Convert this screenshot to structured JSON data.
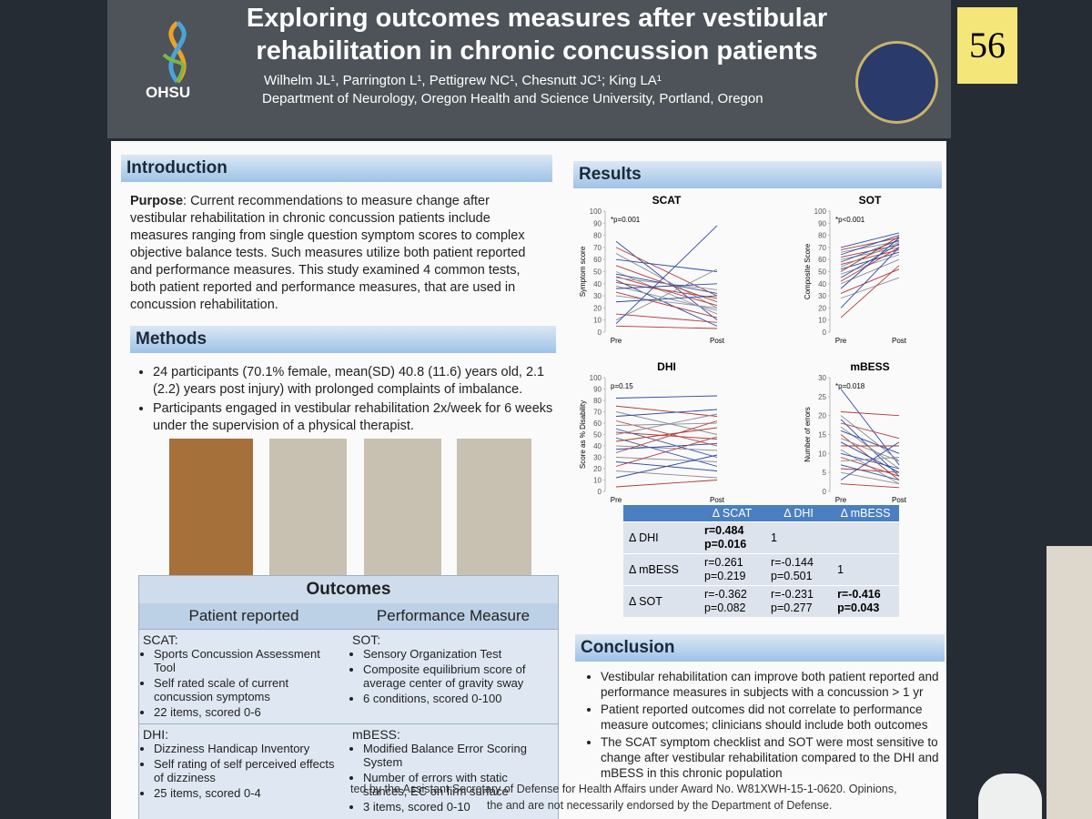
{
  "header": {
    "logo": "OHSU",
    "title": "Exploring outcomes measures after vestibular rehabilitation in chronic concussion patients",
    "authors": "Wilhelm JL¹, Parrington L¹, Pettigrew NC¹, Chesnutt JC¹; King LA¹",
    "affiliation": "Department of Neurology, Oregon Health and Science University, Portland, Oregon",
    "sticky_note": "56"
  },
  "introduction": {
    "heading": "Introduction",
    "purpose_label": "Purpose",
    "text": ": Current recommendations to measure change after vestibular rehabilitation in chronic concussion patients include measures ranging from single question symptom scores to complex objective balance tests.  Such measures utilize both patient reported and performance measures. This study examined 4 common tests, both patient reported and performance measures, that are used in concussion rehabilitation."
  },
  "methods": {
    "heading": "Methods",
    "bullets": [
      "24 participants (70.1% female, mean(SD) 40.8 (11.6) years old, 2.1 (2.2) years post injury) with prolonged complaints of imbalance.",
      "Participants engaged in vestibular rehabilitation 2x/week for 6 weeks under the supervision of a physical therapist."
    ]
  },
  "outcomes": {
    "title": "Outcomes",
    "columns": [
      "Patient reported",
      "Performance Measure"
    ],
    "rows": [
      [
        {
          "head": "SCAT:",
          "items": [
            "Sports Concussion Assessment Tool",
            "Self rated scale of current concussion symptoms",
            "22 items, scored 0-6"
          ]
        },
        {
          "head": "SOT:",
          "items": [
            "Sensory Organization Test",
            "Composite equilibrium score of average center of gravity sway",
            "6 conditions, scored 0-100"
          ]
        }
      ],
      [
        {
          "head": "DHI:",
          "items": [
            "Dizziness Handicap Inventory",
            "Self rating of self perceived effects of dizziness",
            "25 items, scored 0-4"
          ]
        },
        {
          "head": "mBESS:",
          "items": [
            "Modified Balance Error Scoring System",
            "Number of errors with static stances, EC on firm surface",
            "3 items, scored 0-10"
          ]
        }
      ]
    ]
  },
  "results": {
    "heading": "Results"
  },
  "chart_data": [
    {
      "type": "line",
      "title": "SCAT",
      "y_label": "Symptom score",
      "annotation": "*p=0.001",
      "categories": [
        "Pre",
        "Post"
      ],
      "ylim": [
        0,
        100
      ],
      "yticks": [
        0,
        10,
        20,
        30,
        40,
        50,
        60,
        70,
        80,
        90,
        100
      ],
      "colors": [
        "#2e4a9e",
        "#b03a3a",
        "#8a8f99"
      ],
      "series": [
        {
          "values": [
            75,
            10
          ]
        },
        {
          "values": [
            70,
            30
          ]
        },
        {
          "values": [
            65,
            20
          ]
        },
        {
          "values": [
            60,
            50
          ]
        },
        {
          "values": [
            55,
            25
          ]
        },
        {
          "values": [
            50,
            15
          ]
        },
        {
          "values": [
            48,
            32
          ]
        },
        {
          "values": [
            46,
            22
          ]
        },
        {
          "values": [
            45,
            35
          ]
        },
        {
          "values": [
            43,
            5
          ]
        },
        {
          "values": [
            41,
            28
          ]
        },
        {
          "values": [
            38,
            18
          ]
        },
        {
          "values": [
            36,
            40
          ]
        },
        {
          "values": [
            33,
            12
          ]
        },
        {
          "values": [
            30,
            20
          ]
        },
        {
          "values": [
            25,
            30
          ]
        },
        {
          "values": [
            15,
            8
          ]
        },
        {
          "values": [
            10,
            52
          ]
        },
        {
          "values": [
            7,
            88
          ]
        },
        {
          "values": [
            5,
            3
          ]
        }
      ]
    },
    {
      "type": "line",
      "title": "SOT",
      "y_label": "Composite Score",
      "annotation": "*p<0.001",
      "categories": [
        "Pre",
        "Post"
      ],
      "ylim": [
        0,
        100
      ],
      "yticks": [
        0,
        10,
        20,
        30,
        40,
        50,
        60,
        70,
        80,
        90,
        100
      ],
      "colors": [
        "#2e4a9e",
        "#b03a3a",
        "#8a8f99"
      ],
      "series": [
        {
          "values": [
            70,
            82
          ]
        },
        {
          "values": [
            68,
            78
          ]
        },
        {
          "values": [
            66,
            75
          ]
        },
        {
          "values": [
            64,
            80
          ]
        },
        {
          "values": [
            62,
            72
          ]
        },
        {
          "values": [
            60,
            70
          ]
        },
        {
          "values": [
            58,
            76
          ]
        },
        {
          "values": [
            56,
            68
          ]
        },
        {
          "values": [
            54,
            74
          ]
        },
        {
          "values": [
            52,
            66
          ]
        },
        {
          "values": [
            50,
            79
          ]
        },
        {
          "values": [
            48,
            64
          ]
        },
        {
          "values": [
            45,
            73
          ]
        },
        {
          "values": [
            42,
            70
          ]
        },
        {
          "values": [
            40,
            60
          ]
        },
        {
          "values": [
            36,
            78
          ]
        },
        {
          "values": [
            32,
            52
          ]
        },
        {
          "values": [
            28,
            45
          ]
        },
        {
          "values": [
            20,
            70
          ]
        },
        {
          "values": [
            12,
            55
          ]
        }
      ]
    },
    {
      "type": "line",
      "title": "DHI",
      "y_label": "Score as % Disability",
      "annotation": "p=0.15",
      "categories": [
        "Pre",
        "Post"
      ],
      "ylim": [
        0,
        100
      ],
      "yticks": [
        0,
        10,
        20,
        30,
        40,
        50,
        60,
        70,
        80,
        90,
        100
      ],
      "colors": [
        "#2e4a9e",
        "#b03a3a",
        "#8a8f99"
      ],
      "series": [
        {
          "values": [
            82,
            84
          ]
        },
        {
          "values": [
            75,
            66
          ]
        },
        {
          "values": [
            70,
            50
          ]
        },
        {
          "values": [
            66,
            72
          ]
        },
        {
          "values": [
            62,
            40
          ]
        },
        {
          "values": [
            58,
            60
          ]
        },
        {
          "values": [
            55,
            30
          ]
        },
        {
          "values": [
            52,
            46
          ]
        },
        {
          "values": [
            50,
            68
          ]
        },
        {
          "values": [
            47,
            22
          ]
        },
        {
          "values": [
            44,
            56
          ]
        },
        {
          "values": [
            40,
            36
          ]
        },
        {
          "values": [
            37,
            42
          ]
        },
        {
          "values": [
            34,
            62
          ]
        },
        {
          "values": [
            30,
            26
          ]
        },
        {
          "values": [
            26,
            18
          ]
        },
        {
          "values": [
            22,
            48
          ]
        },
        {
          "values": [
            18,
            12
          ]
        },
        {
          "values": [
            12,
            32
          ]
        },
        {
          "values": [
            4,
            10
          ]
        }
      ]
    },
    {
      "type": "line",
      "title": "mBESS",
      "y_label": "Number of errors",
      "annotation": "*p=0.018",
      "categories": [
        "Pre",
        "Post"
      ],
      "ylim": [
        0,
        30
      ],
      "yticks": [
        0,
        5,
        10,
        15,
        20,
        25,
        30
      ],
      "colors": [
        "#2e4a9e",
        "#b03a3a",
        "#8a8f99"
      ],
      "series": [
        {
          "values": [
            27,
            7
          ]
        },
        {
          "values": [
            21,
            20
          ]
        },
        {
          "values": [
            20,
            8
          ]
        },
        {
          "values": [
            19,
            4
          ]
        },
        {
          "values": [
            18,
            14
          ]
        },
        {
          "values": [
            17,
            6
          ]
        },
        {
          "values": [
            16,
            10
          ]
        },
        {
          "values": [
            15,
            3
          ]
        },
        {
          "values": [
            14,
            8
          ]
        },
        {
          "values": [
            13,
            5
          ]
        },
        {
          "values": [
            12,
            12
          ]
        },
        {
          "values": [
            11,
            2
          ]
        },
        {
          "values": [
            10,
            6
          ]
        },
        {
          "values": [
            9,
            4
          ]
        },
        {
          "values": [
            8,
            9
          ]
        },
        {
          "values": [
            7,
            3
          ]
        },
        {
          "values": [
            6,
            5
          ]
        },
        {
          "values": [
            5,
            2
          ]
        },
        {
          "values": [
            3,
            13
          ]
        },
        {
          "values": [
            2,
            1
          ]
        }
      ]
    }
  ],
  "correlation_table": {
    "columns": [
      "Δ SCAT",
      "Δ DHI",
      "Δ mBESS"
    ],
    "rows": [
      {
        "label": "Δ DHI",
        "cells": [
          {
            "lines": [
              "r=0.484",
              "p=0.016"
            ],
            "bold": true
          },
          {
            "lines": [
              "1"
            ]
          },
          null
        ]
      },
      {
        "label": "Δ mBESS",
        "cells": [
          {
            "lines": [
              "r=0.261",
              "p=0.219"
            ]
          },
          {
            "lines": [
              "r=-0.144",
              "p=0.501"
            ]
          },
          {
            "lines": [
              "1"
            ]
          }
        ]
      },
      {
        "label": "Δ SOT",
        "cells": [
          {
            "lines": [
              "r=-0.362",
              "p=0.082"
            ]
          },
          {
            "lines": [
              "r=-0.231",
              "p=0.277"
            ]
          },
          {
            "lines": [
              "r=-0.416",
              "p=0.043"
            ],
            "bold": true
          }
        ]
      }
    ]
  },
  "conclusion": {
    "heading": "Conclusion",
    "bullets": [
      "Vestibular rehabilitation can improve both patient reported and performance measures in subjects with a concussion > 1 yr",
      "Patient reported outcomes did not correlate to performance measure outcomes; clinicians should include both outcomes",
      "The SCAT symptom checklist and SOT were most sensitive to change after vestibular rehabilitation compared to the DHI and mBESS in this chronic population"
    ]
  },
  "footer": {
    "line1": "ted by the Assistant Secretary of Defense for Health Affairs under Award No. W81XWH-15-1-0620. Opinions,",
    "line2": "the and are not necessarily endorsed by the Department of Defense."
  }
}
